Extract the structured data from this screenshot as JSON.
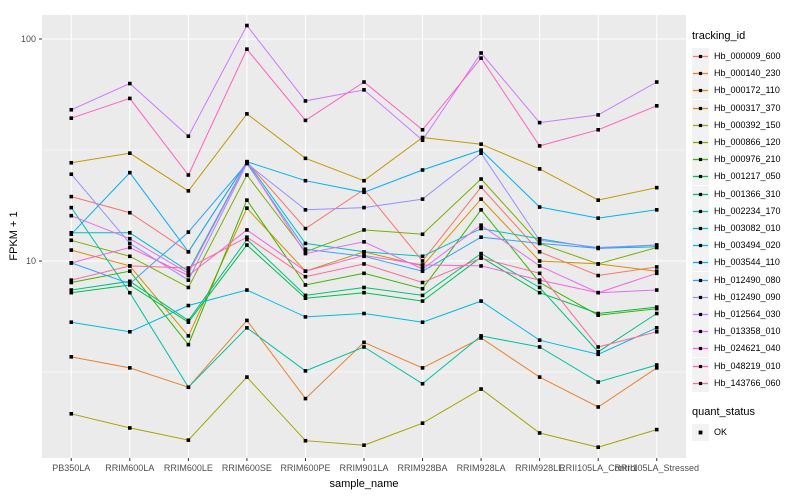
{
  "chart_data": {
    "type": "line",
    "title": "",
    "xlabel": "sample_name",
    "ylabel": "FPKM + 1",
    "y_scale": "log10",
    "ylim": [
      1.3,
      128
    ],
    "y_major_ticks": [
      10,
      100
    ],
    "y_minor_ticks": [
      3.162,
      31.62
    ],
    "grid": true,
    "legend_position": "right",
    "legend_title": "tracking_id",
    "panel_bg": "#EBEBEB",
    "grid_color": "#FFFFFF",
    "marker": "black-square",
    "categories": [
      "PB350LA",
      "RRIM600LA",
      "RRIM600LE",
      "RRIM600SE",
      "RRIM600PE",
      "RRIM901LA",
      "RRIM928BA",
      "RRIM928LA",
      "RRIM928LE",
      "RRII105LA_Control",
      "RRII105LA_Stressed"
    ],
    "series": [
      {
        "name": "Hb_000009_600",
        "color": "#F8766D",
        "values": [
          19.5,
          16.5,
          11.0,
          28.0,
          14.0,
          21.0,
          10.0,
          21.5,
          11.0,
          8.6,
          9.4
        ]
      },
      {
        "name": "Hb_000140_230",
        "color": "#EA8331",
        "values": [
          3.7,
          3.3,
          2.7,
          5.4,
          2.4,
          4.3,
          3.3,
          4.5,
          3.0,
          2.2,
          3.3
        ]
      },
      {
        "name": "Hb_000172_110",
        "color": "#D89000",
        "values": [
          11.2,
          9.5,
          4.6,
          17.3,
          9.0,
          11.0,
          9.5,
          19.0,
          10.0,
          9.7,
          9.0
        ]
      },
      {
        "name": "Hb_000317_370",
        "color": "#C09B00",
        "values": [
          27.7,
          30.6,
          20.7,
          46.0,
          29.0,
          23.0,
          36.0,
          33.6,
          26.0,
          18.8,
          21.4
        ]
      },
      {
        "name": "Hb_000392_150",
        "color": "#A3A500",
        "values": [
          2.05,
          1.77,
          1.56,
          3.0,
          1.55,
          1.48,
          1.86,
          2.65,
          1.68,
          1.45,
          1.74
        ]
      },
      {
        "name": "Hb_000866_120",
        "color": "#7CAE00",
        "values": [
          12.4,
          10.5,
          7.6,
          24.4,
          11.0,
          13.8,
          13.2,
          23.4,
          12.0,
          9.7,
          11.5
        ]
      },
      {
        "name": "Hb_000976_210",
        "color": "#39B600",
        "values": [
          8.0,
          9.0,
          4.2,
          18.8,
          7.8,
          8.8,
          7.5,
          17.0,
          8.0,
          5.7,
          6.1
        ]
      },
      {
        "name": "Hb_001217_050",
        "color": "#00BB4E",
        "values": [
          7.2,
          7.8,
          5.3,
          11.8,
          6.8,
          7.2,
          6.6,
          10.4,
          7.2,
          5.8,
          6.2
        ]
      },
      {
        "name": "Hb_001366_310",
        "color": "#00BF7D",
        "values": [
          7.4,
          8.1,
          5.4,
          12.5,
          7.0,
          7.6,
          7.0,
          10.8,
          7.6,
          3.9,
          5.8
        ]
      },
      {
        "name": "Hb_002234_170",
        "color": "#00C1A3",
        "values": [
          17.4,
          7.2,
          2.7,
          5.0,
          3.2,
          4.1,
          2.8,
          4.6,
          4.1,
          2.85,
          3.4
        ]
      },
      {
        "name": "Hb_003082_010",
        "color": "#00BFC4",
        "values": [
          13.4,
          13.4,
          9.0,
          28.0,
          12.0,
          11.0,
          10.5,
          14.0,
          12.6,
          11.4,
          11.6
        ]
      },
      {
        "name": "Hb_003494_020",
        "color": "#00BAE0",
        "values": [
          5.3,
          4.8,
          6.3,
          7.4,
          5.6,
          5.8,
          5.3,
          6.6,
          4.4,
          3.8,
          5.0
        ]
      },
      {
        "name": "Hb_003544_110",
        "color": "#00B0F6",
        "values": [
          13.2,
          25.0,
          11.0,
          28.0,
          23.0,
          20.4,
          25.7,
          31.6,
          17.5,
          15.6,
          17.0
        ]
      },
      {
        "name": "Hb_012490_080",
        "color": "#35A2FF",
        "values": [
          9.8,
          7.9,
          13.5,
          27.5,
          11.3,
          10.5,
          9.0,
          12.8,
          12.0,
          11.4,
          11.8
        ]
      },
      {
        "name": "Hb_012490_090",
        "color": "#9590FF",
        "values": [
          24.6,
          12.0,
          8.2,
          27.5,
          17.0,
          17.4,
          19.0,
          30.6,
          12.4,
          11.5,
          11.8
        ]
      },
      {
        "name": "Hb_012564_030",
        "color": "#C77CFF",
        "values": [
          48.0,
          63.0,
          36.5,
          115.0,
          52.6,
          59.0,
          35.0,
          86.5,
          42.0,
          45.5,
          64.0
        ]
      },
      {
        "name": "Hb_013358_010",
        "color": "#E76BF3",
        "values": [
          16.0,
          12.6,
          8.8,
          27.8,
          10.8,
          12.2,
          9.2,
          14.5,
          9.5,
          7.2,
          7.4
        ]
      },
      {
        "name": "Hb_024621_040",
        "color": "#FA62DB",
        "values": [
          9.8,
          11.5,
          8.6,
          13.8,
          9.0,
          10.6,
          9.6,
          9.5,
          8.2,
          7.2,
          8.8
        ]
      },
      {
        "name": "Hb_048219_010",
        "color": "#FF62BC",
        "values": [
          44.0,
          54.0,
          24.4,
          90.0,
          43.0,
          64.0,
          39.0,
          82.0,
          33.0,
          39.0,
          50.0
        ]
      },
      {
        "name": "Hb_143766_060",
        "color": "#FF6A98",
        "values": [
          8.2,
          9.5,
          9.3,
          12.8,
          8.5,
          9.7,
          8.0,
          10.3,
          8.8,
          4.1,
          4.8
        ]
      }
    ],
    "quant_legend": {
      "title": "quant_status",
      "items": [
        {
          "label": "OK"
        }
      ]
    }
  }
}
